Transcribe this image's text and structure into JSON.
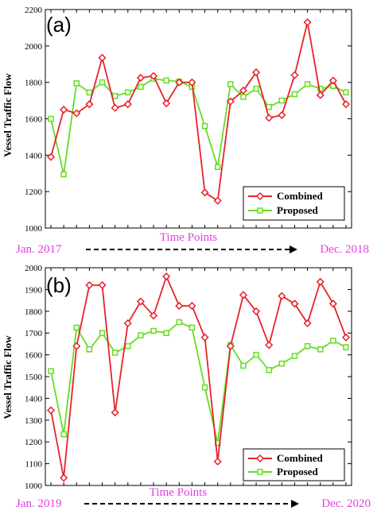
{
  "chart_data": [
    {
      "type": "line",
      "panel_label": "(a)",
      "ylabel": "Vessel Traffic Flow",
      "ylim": [
        1000,
        2200
      ],
      "yticks": [
        1000,
        1200,
        1400,
        1600,
        1800,
        2000,
        2200
      ],
      "x": [
        1,
        2,
        3,
        4,
        5,
        6,
        7,
        8,
        9,
        10,
        11,
        12,
        13,
        14,
        15,
        16,
        17,
        18,
        19,
        20,
        21,
        22,
        23,
        24
      ],
      "series": [
        {
          "name": "Combined",
          "color": "#e8222a",
          "marker": "diamond",
          "values": [
            1390,
            1650,
            1630,
            1680,
            1935,
            1660,
            1680,
            1825,
            1835,
            1685,
            1800,
            1800,
            1195,
            1150,
            1695,
            1755,
            1855,
            1605,
            1620,
            1840,
            2130,
            1730,
            1810,
            1680
          ]
        },
        {
          "name": "Proposed",
          "color": "#66dd22",
          "marker": "square",
          "values": [
            1600,
            1295,
            1795,
            1745,
            1800,
            1725,
            1745,
            1775,
            1820,
            1810,
            1805,
            1775,
            1560,
            1335,
            1790,
            1720,
            1765,
            1665,
            1700,
            1735,
            1790,
            1765,
            1780,
            1745
          ]
        }
      ],
      "legend": "bottom-right",
      "xaxis": {
        "start": "Jan. 2017",
        "label": "Time Points",
        "end": "Dec. 2018"
      }
    },
    {
      "type": "line",
      "panel_label": "(b)",
      "ylabel": "Vessel Traffic Flow",
      "ylim": [
        1000,
        2000
      ],
      "yticks": [
        1000,
        1100,
        1200,
        1300,
        1400,
        1500,
        1600,
        1700,
        1800,
        1900,
        2000
      ],
      "x": [
        1,
        2,
        3,
        4,
        5,
        6,
        7,
        8,
        9,
        10,
        11,
        12,
        13,
        14,
        15,
        16,
        17,
        18,
        19,
        20,
        21,
        22,
        23,
        24
      ],
      "series": [
        {
          "name": "Combined",
          "color": "#e8222a",
          "marker": "diamond",
          "values": [
            1345,
            1035,
            1640,
            1920,
            1920,
            1335,
            1745,
            1845,
            1780,
            1960,
            1825,
            1825,
            1680,
            1110,
            1640,
            1875,
            1800,
            1645,
            1870,
            1835,
            1745,
            1935,
            1835,
            1680
          ]
        },
        {
          "name": "Proposed",
          "color": "#66dd22",
          "marker": "square",
          "values": [
            1525,
            1235,
            1725,
            1625,
            1700,
            1610,
            1640,
            1690,
            1710,
            1700,
            1750,
            1725,
            1450,
            1195,
            1645,
            1550,
            1600,
            1530,
            1560,
            1595,
            1640,
            1625,
            1665,
            1635
          ]
        }
      ],
      "legend": "bottom-right",
      "xaxis": {
        "start": "Jan. 2019",
        "label": "Time Points",
        "end": "Dec. 2020"
      }
    }
  ]
}
